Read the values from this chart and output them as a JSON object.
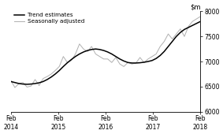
{
  "title": "",
  "ylim": [
    6000,
    8000
  ],
  "yticks": [
    6000,
    6500,
    7000,
    7500,
    8000
  ],
  "ytick_labels": [
    "6000",
    "6500",
    "7000",
    "7500",
    "8000"
  ],
  "xtick_labels": [
    "Feb\n2014",
    "Feb\n2015",
    "Feb\n2016",
    "Feb\n2017",
    "Feb\n2018"
  ],
  "xtick_positions": [
    0,
    12,
    24,
    36,
    48
  ],
  "trend_color": "#000000",
  "seasonal_color": "#b0b0b0",
  "trend_label": "Trend estimates",
  "seasonal_label": "Seasonally adjusted",
  "background_color": "#ffffff",
  "trend_data": [
    6600,
    6580,
    6560,
    6550,
    6545,
    6550,
    6560,
    6575,
    6600,
    6640,
    6690,
    6750,
    6820,
    6900,
    6975,
    7040,
    7100,
    7150,
    7190,
    7220,
    7240,
    7250,
    7240,
    7220,
    7190,
    7150,
    7100,
    7050,
    7010,
    6980,
    6970,
    6970,
    6975,
    6985,
    7000,
    7020,
    7060,
    7120,
    7200,
    7300,
    7400,
    7500,
    7580,
    7640,
    7680,
    7720,
    7760,
    7800
  ],
  "seasonal_data": [
    6620,
    6480,
    6560,
    6580,
    6490,
    6510,
    6640,
    6520,
    6660,
    6700,
    6750,
    6820,
    6900,
    7100,
    6980,
    7020,
    7150,
    7350,
    7250,
    7200,
    7300,
    7150,
    7100,
    7050,
    7050,
    6980,
    7080,
    6950,
    6900,
    6980,
    6950,
    6970,
    7080,
    6980,
    7050,
    7100,
    7150,
    7300,
    7400,
    7550,
    7450,
    7550,
    7650,
    7500,
    7700,
    7800,
    7850,
    7900
  ]
}
